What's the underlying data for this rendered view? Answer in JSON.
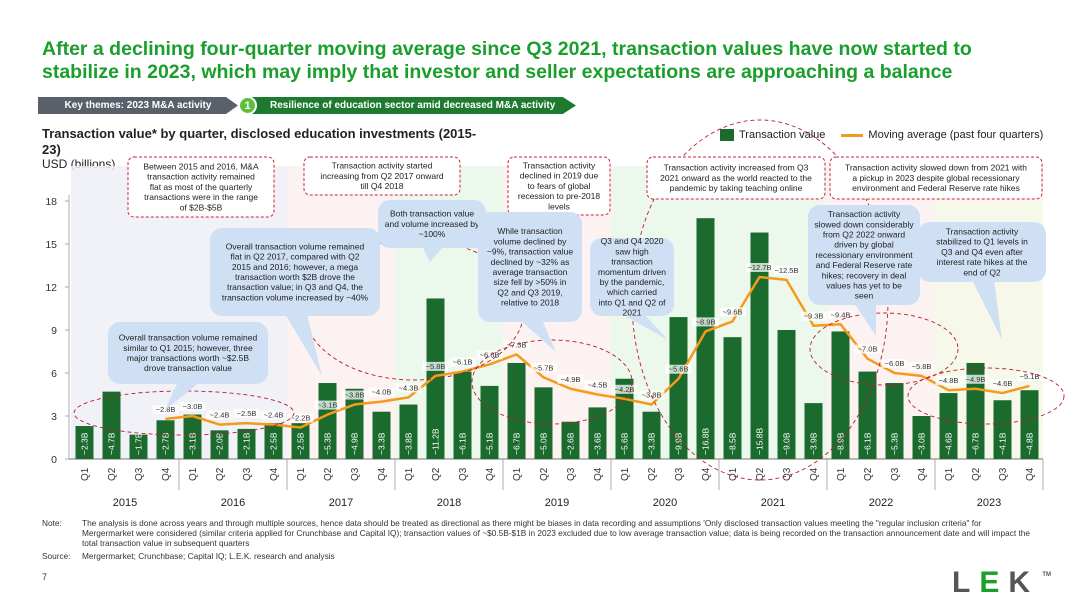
{
  "headline": "After a declining four-quarter moving average since Q3 2021, transaction values have now started to stabilize in 2023, which may imply that investor and seller expectations are approaching a balance",
  "breadcrumb": {
    "main": "Key themes: 2023 M&A activity",
    "number": "1",
    "sub": "Resilience of education sector amid decreased M&A activity"
  },
  "chart_title": "Transaction value* by quarter, disclosed education investments (2015-23)",
  "units": "USD (billions)",
  "legend": {
    "bar": "Transaction value",
    "line": "Moving average (past four quarters)"
  },
  "colors": {
    "bar": "#1b6b2e",
    "line": "#f59a1b",
    "accent": "#1a9e2c",
    "callout": "#cfe0f5"
  },
  "chart_data": {
    "type": "bar",
    "years": [
      "2015",
      "2016",
      "2017",
      "2018",
      "2019",
      "2020",
      "2021",
      "2022",
      "2023"
    ],
    "categories": [
      "Q1",
      "Q2",
      "Q3",
      "Q4",
      "Q1",
      "Q2",
      "Q3",
      "Q4",
      "Q1",
      "Q2",
      "Q3",
      "Q4",
      "Q1",
      "Q2",
      "Q3",
      "Q4",
      "Q1",
      "Q2",
      "Q3",
      "Q4",
      "Q1",
      "Q2",
      "Q3",
      "Q4",
      "Q1",
      "Q2",
      "Q3",
      "Q4",
      "Q1",
      "Q2",
      "Q3",
      "Q4",
      "Q1",
      "Q2",
      "Q3",
      "Q4"
    ],
    "series": [
      {
        "name": "Transaction value",
        "values": [
          2.3,
          4.7,
          1.7,
          2.7,
          3.1,
          2.0,
          2.1,
          2.5,
          2.5,
          5.3,
          4.9,
          3.3,
          3.8,
          11.2,
          6.1,
          5.1,
          6.7,
          5.0,
          2.6,
          3.6,
          5.6,
          3.3,
          9.9,
          16.8,
          8.5,
          15.8,
          9.0,
          3.9,
          8.9,
          6.1,
          5.3,
          3.0,
          4.6,
          6.7,
          4.1,
          4.8
        ],
        "labels": [
          "~2.3B",
          "~4.7B",
          "~1.7B",
          "~2.7B",
          "~3.1B",
          "~2.0B",
          "~2.1B",
          "~2.5B",
          "~2.5B",
          "~5.3B",
          "~4.9B",
          "~3.3B",
          "~3.8B",
          "~11.2B",
          "~6.1B",
          "~5.1B",
          "~6.7B",
          "~5.0B",
          "~2.6B",
          "~3.6B",
          "~5.6B",
          "~3.3B",
          "~9.9B",
          "~16.8B",
          "~8.5B",
          "~15.8B",
          "~9.0B",
          "~3.9B",
          "~8.9B",
          "~6.1B",
          "~5.3B",
          "~3.0B",
          "~4.6B",
          "~6.7B",
          "~4.1B",
          "~4.8B"
        ]
      },
      {
        "name": "Moving average (past four quarters)",
        "points": [
          [
            3,
            2.8
          ],
          [
            4,
            3.0
          ],
          [
            5,
            2.4
          ],
          [
            6,
            2.5
          ],
          [
            7,
            2.4
          ],
          [
            8,
            2.2
          ],
          [
            9,
            3.1
          ],
          [
            10,
            3.8
          ],
          [
            11,
            4.0
          ],
          [
            12,
            4.3
          ],
          [
            13,
            5.8
          ],
          [
            14,
            6.1
          ],
          [
            15,
            6.6
          ],
          [
            16,
            7.3
          ],
          [
            17,
            5.7
          ],
          [
            18,
            4.9
          ],
          [
            19,
            4.5
          ],
          [
            20,
            4.2
          ],
          [
            21,
            3.8
          ],
          [
            22,
            5.6
          ],
          [
            23,
            8.9
          ],
          [
            24,
            9.6
          ],
          [
            25,
            12.7
          ],
          [
            26,
            12.5
          ],
          [
            27,
            9.3
          ],
          [
            28,
            9.4
          ],
          [
            29,
            7.0
          ],
          [
            30,
            6.0
          ],
          [
            31,
            5.8
          ],
          [
            32,
            4.8
          ],
          [
            33,
            4.9
          ],
          [
            34,
            4.6
          ],
          [
            35,
            5.1
          ]
        ],
        "labels": [
          "~2.8B",
          "~3.0B",
          "~2.4B",
          "~2.5B",
          "~2.4B",
          "~2.2B",
          "~3.1B",
          "~3.8B",
          "~4.0B",
          "~4.3B",
          "~5.8B",
          "~6.1B",
          "~6.6B",
          "~7.3B",
          "~5.7B",
          "~4.9B",
          "~4.5B",
          "~4.2B",
          "~3.8B",
          "~5.6B",
          "~8.9B",
          "~9.6B",
          "~12.7B",
          "~12.5B",
          "~9.3B",
          "~9.4B",
          "~7.0B",
          "~6.0B",
          "~5.8B",
          "~4.8B",
          "~4.9B",
          "~4.6B",
          "~5.1B"
        ]
      }
    ],
    "yticks": [
      "0",
      "3",
      "6",
      "9",
      "12",
      "15",
      "18"
    ],
    "ylim": [
      0,
      18
    ],
    "callouts": [
      {
        "text": "Between 2015 and 2016, M&A transaction activity remained flat as most of the quarterly transactions were in the range of $2B-$5B",
        "style": "dashed"
      },
      {
        "text": "Transaction activity started increasing from Q2 2017 onward till Q4 2018",
        "style": "dashed"
      },
      {
        "text": "Transaction activity declined in 2019 due to fears of global recession to pre-2018 levels",
        "style": "dashed"
      },
      {
        "text": "Transaction activity increased from Q3 2021 onward as the world reacted to the pandemic by taking teaching online",
        "style": "dashed"
      },
      {
        "text": "Transaction activity slowed down from 2021 with a pickup in 2023 despite global recessionary environment and Federal Reserve rate hikes",
        "style": "dashed"
      },
      {
        "text": "Overall transaction volume remained similar to Q1 2015; however, three major transactions worth ~$2.5B drove transaction value",
        "style": "bubble"
      },
      {
        "text": "Overall transaction volume remained flat in Q2 2017, compared with Q2 2015 and 2016; however, a mega transaction worth $2B drove the transaction value; in Q3 and Q4, the transaction volume increased by ~40%",
        "style": "bubble"
      },
      {
        "text": "Both transaction value and volume increased by ~100%",
        "style": "bubble"
      },
      {
        "text": "While transaction volume declined by ~9%, transaction value declined by ~32% as average transaction size fell by >50% in Q2 and Q3 2019, relative to 2018",
        "style": "bubble"
      },
      {
        "text": "Q3 and Q4 2020 saw high transaction momentum driven by the pandemic, which carried into Q1 and Q2 of 2021",
        "style": "bubble"
      },
      {
        "text": "Transaction activity slowed down considerably from Q2 2022 onward driven by global recessionary environment and Federal Reserve rate hikes; recovery in deal values has yet to be seen",
        "style": "bubble"
      },
      {
        "text": "Transaction activity stabilized to Q1 levels in Q3 and Q4 even after interest rate hikes at the end of Q2",
        "style": "bubble"
      }
    ]
  },
  "note": {
    "label": "Note:",
    "text": "The analysis is done across years and through multiple sources, hence data should be treated as directional as there might be biases in data recording and assumptions 'Only disclosed transaction values meeting the \"regular inclusion criteria\" for Mergermarket were considered (similar criteria applied for Crunchbase and Capital IQ); transaction values of ~$0.5B-$1B in 2023 excluded due to low average transaction value; data is being recorded on the transaction announcement date and will impact the total transaction value in subsequent quarters"
  },
  "source": {
    "label": "Source:",
    "text": "Mergermarket; Crunchbase; Capital IQ; L.E.K. research and analysis"
  },
  "page_number": "7",
  "logo": {
    "text": "LEK",
    "tm": "TM"
  }
}
